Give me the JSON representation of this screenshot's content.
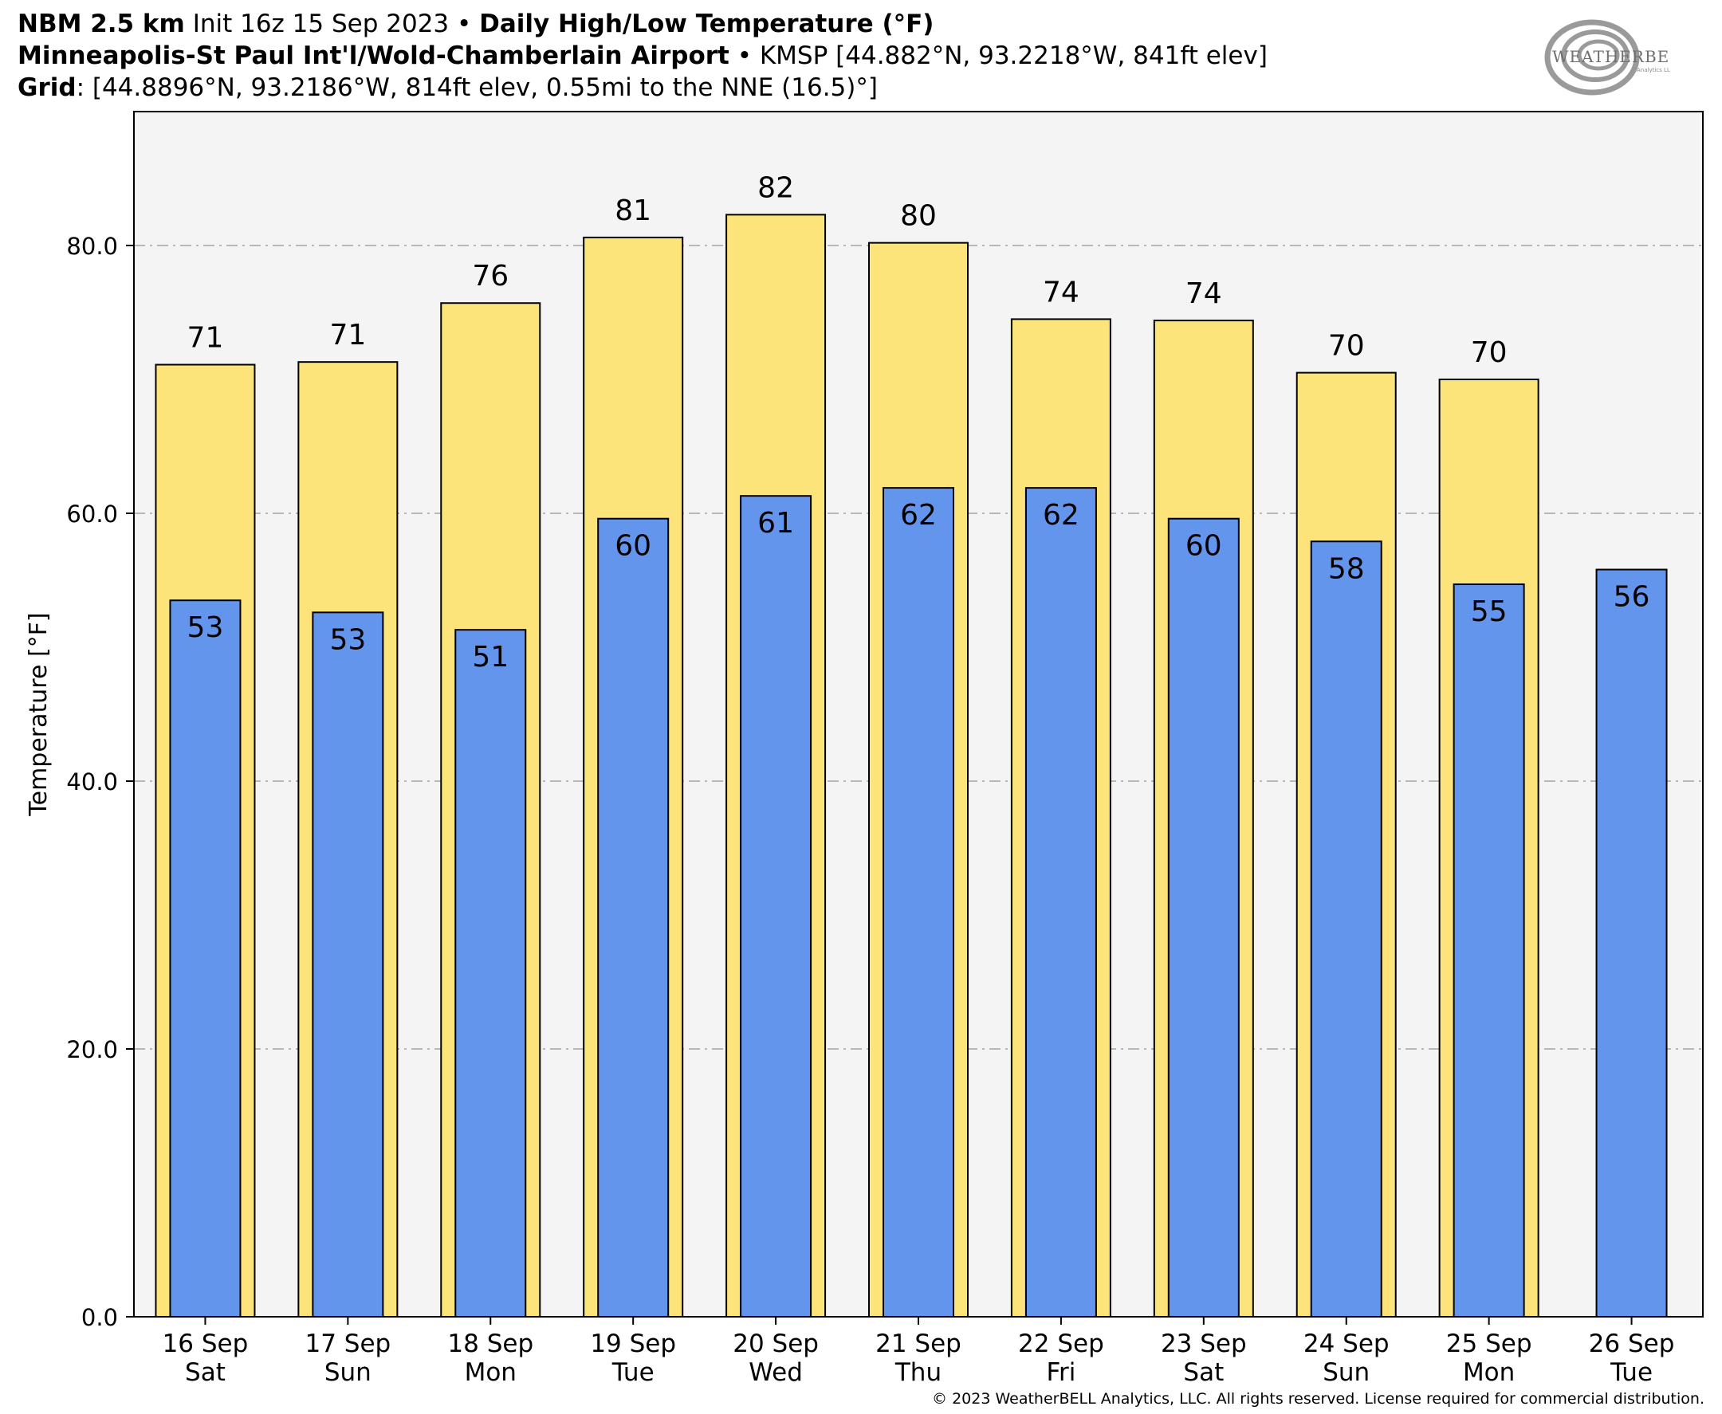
{
  "header": {
    "line1_model": "NBM 2.5 km",
    "line1_init": " Init 16z 15 Sep 2023 • ",
    "line1_product": "Daily High/Low Temperature (°F)",
    "line2_station": "Minneapolis-St Paul Int'l/Wold-Chamberlain Airport",
    "line2_meta": " • KMSP [44.882°N, 93.2218°W, 841ft elev]",
    "line3_label": "Grid",
    "line3_meta": ": [44.8896°N, 93.2186°W, 814ft elev, 0.55mi to the NNE (16.5)°]"
  },
  "logo": {
    "text": "WEATHERBELL",
    "subtext": "Analytics LLC",
    "icon": "swirl-logo"
  },
  "copyright": "© 2023 WeatherBELL Analytics, LLC. All rights reserved. License required for commercial distribution.",
  "chart_data": {
    "type": "bar",
    "title": "Daily High/Low Temperature (°F)",
    "ylabel": "Temperature [°F]",
    "xlabel": "",
    "ylim": [
      0,
      90
    ],
    "yticks": [
      0,
      20,
      40,
      60,
      80
    ],
    "ytick_labels": [
      "0.0",
      "20.0",
      "40.0",
      "60.0",
      "80.0"
    ],
    "grid": true,
    "categories": [
      [
        "16 Sep",
        "Sat"
      ],
      [
        "17 Sep",
        "Sun"
      ],
      [
        "18 Sep",
        "Mon"
      ],
      [
        "19 Sep",
        "Tue"
      ],
      [
        "20 Sep",
        "Wed"
      ],
      [
        "21 Sep",
        "Thu"
      ],
      [
        "22 Sep",
        "Fri"
      ],
      [
        "23 Sep",
        "Sat"
      ],
      [
        "24 Sep",
        "Sun"
      ],
      [
        "25 Sep",
        "Mon"
      ],
      [
        "26 Sep",
        "Tue"
      ]
    ],
    "series": [
      {
        "name": "High",
        "color": "#fce47a",
        "values": [
          71.1,
          71.3,
          75.7,
          80.6,
          82.3,
          80.2,
          74.5,
          74.4,
          70.5,
          70.0,
          null
        ],
        "labels": [
          "71",
          "71",
          "76",
          "81",
          "82",
          "80",
          "74",
          "74",
          "70",
          "70",
          null
        ]
      },
      {
        "name": "Low",
        "color": "#6495ed",
        "values": [
          53.5,
          52.6,
          51.3,
          59.6,
          61.3,
          61.9,
          61.9,
          59.6,
          57.9,
          54.7,
          55.8
        ],
        "labels": [
          "53",
          "53",
          "51",
          "60",
          "61",
          "62",
          "62",
          "60",
          "58",
          "55",
          "56"
        ]
      }
    ],
    "colors": {
      "plot_background": "#f4f4f5",
      "grid": "#b8b8b8",
      "bar_edge": "#000000"
    }
  }
}
